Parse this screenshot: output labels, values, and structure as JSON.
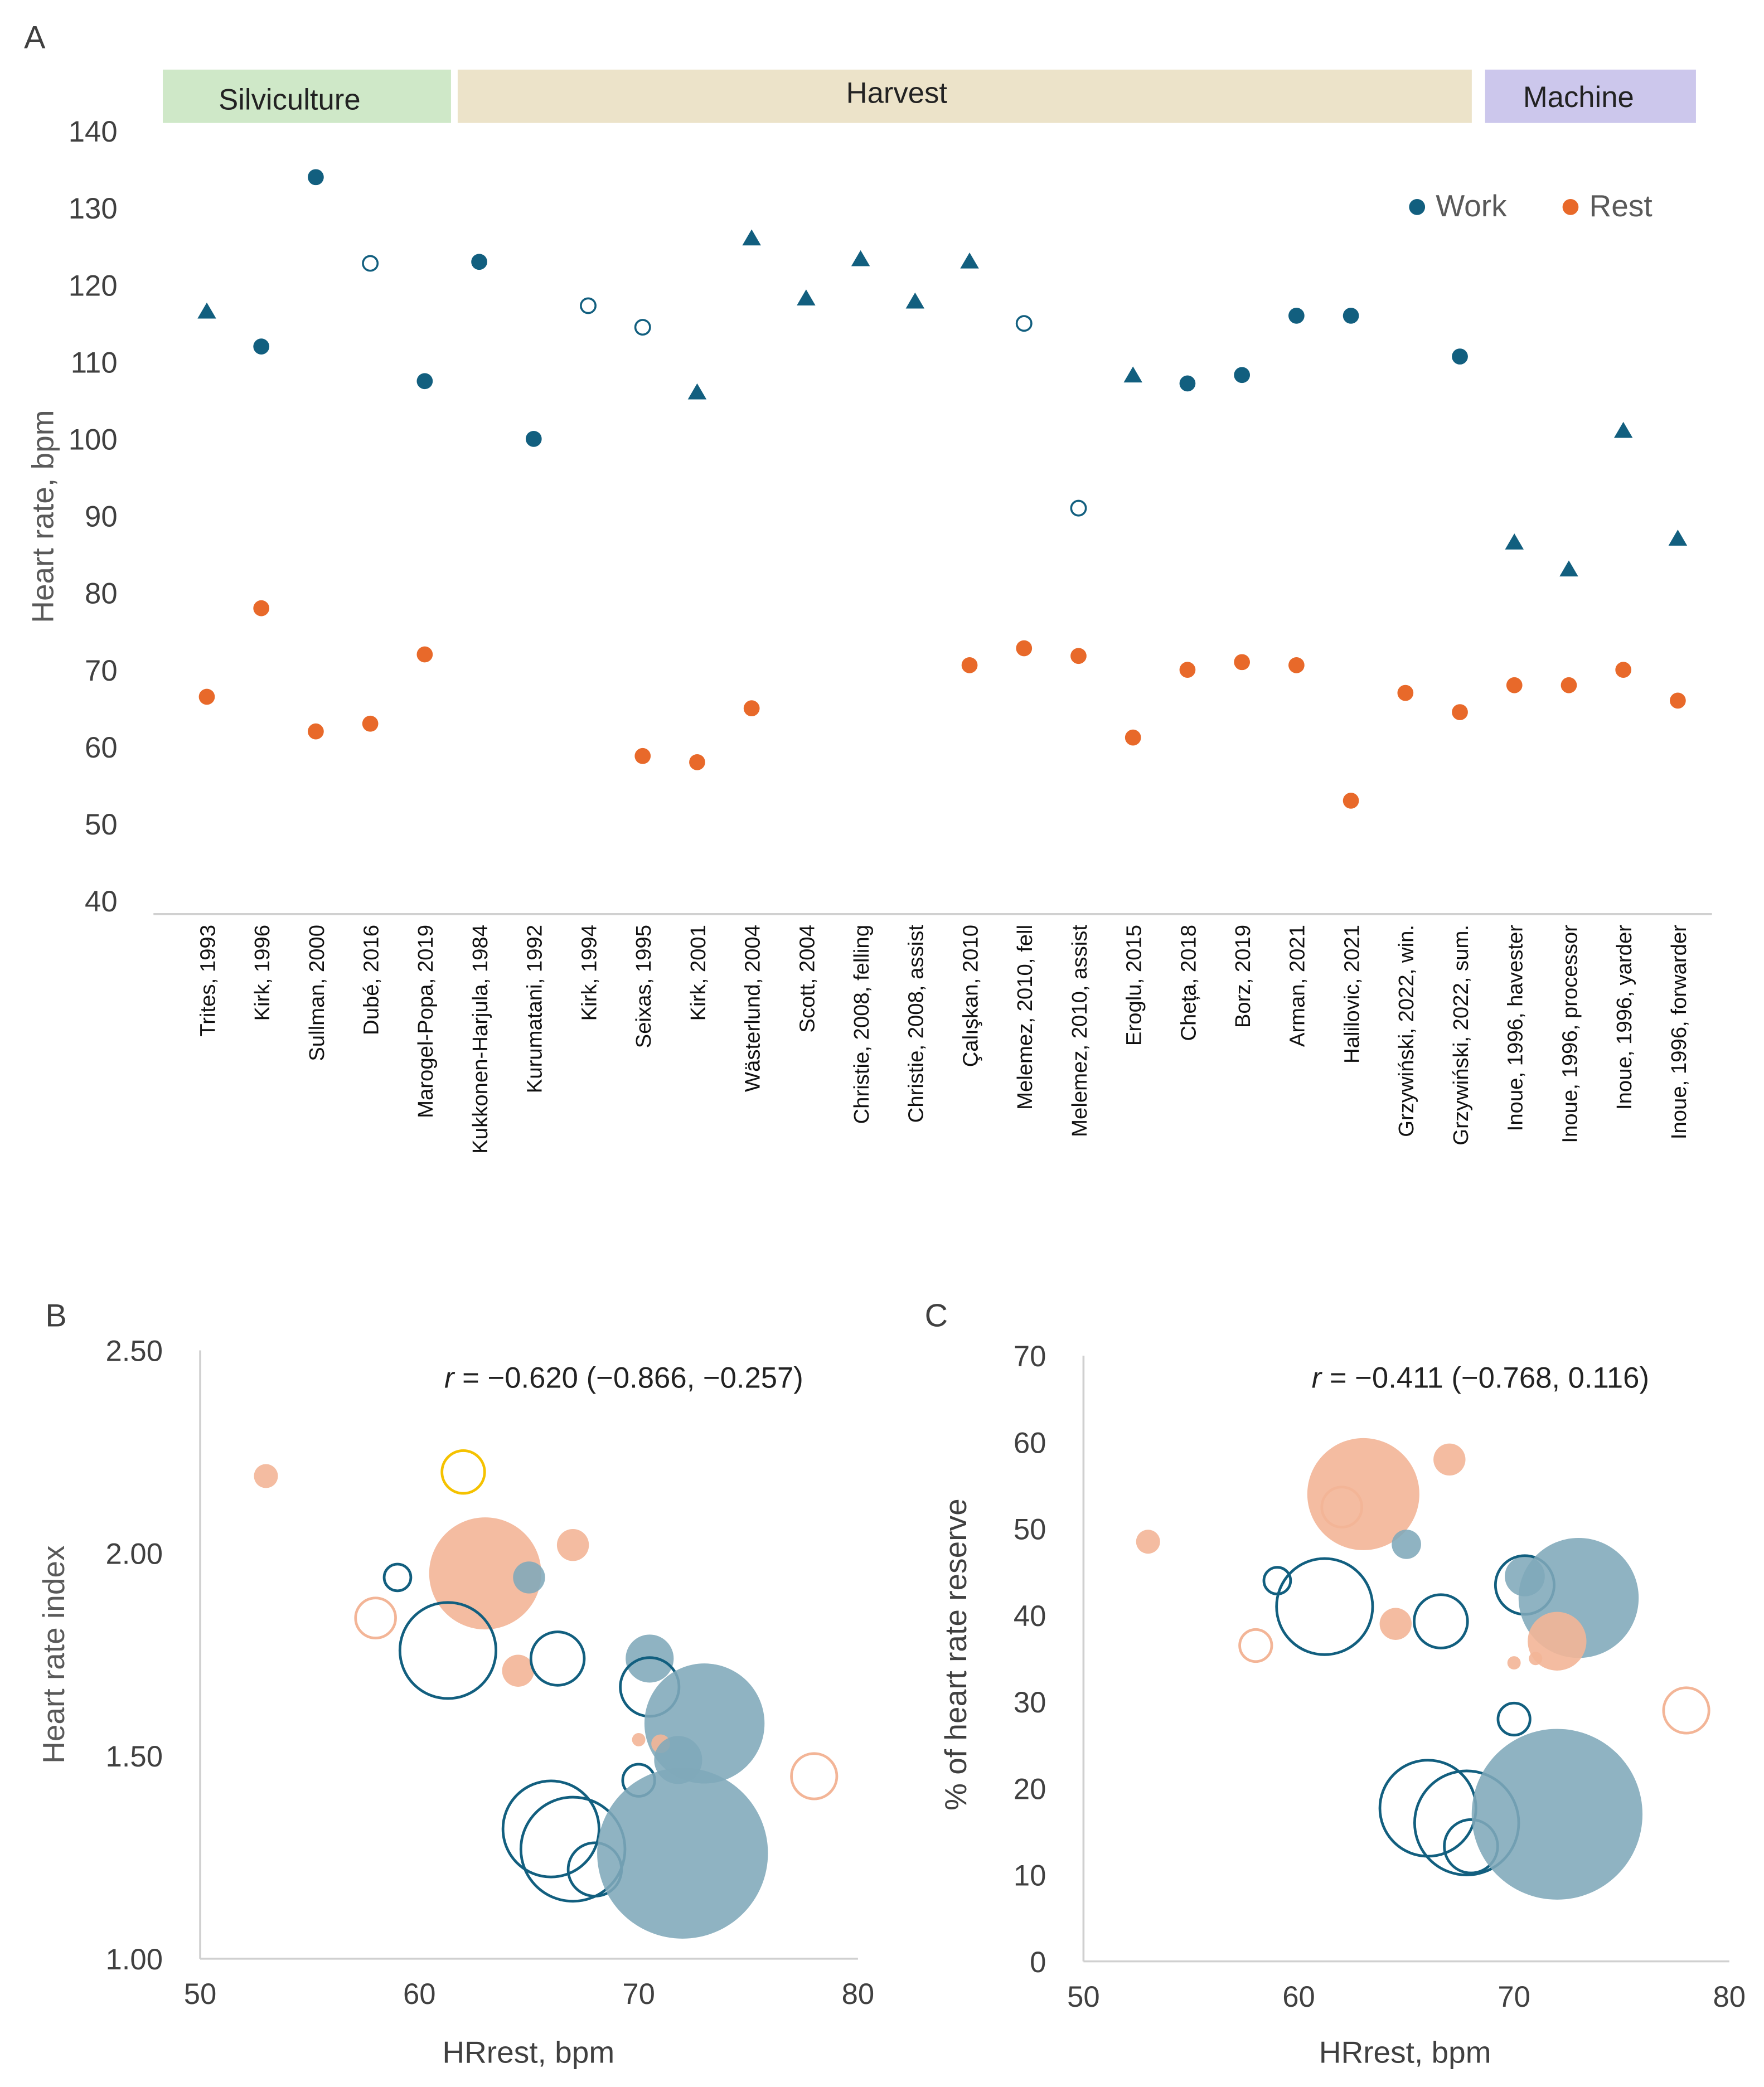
{
  "colors": {
    "work": "#125f7f",
    "work_fill": "#7fa8ba",
    "rest": "#e8692a",
    "rest_fill": "#f3b597",
    "yellow": "#f5c200",
    "axis": "#d0d0d0",
    "text": "#404040",
    "band_silviculture": "#cfe8c8",
    "band_harvest": "#ece3c9",
    "band_machine": "#ccc7ec"
  },
  "chart_data": [
    {
      "panel": "A",
      "type": "scatter",
      "ylabel": "Heart rate, bpm",
      "ylim": [
        40,
        140
      ],
      "yticks": [
        40,
        50,
        60,
        70,
        80,
        90,
        100,
        110,
        120,
        130,
        140
      ],
      "legend": {
        "position": "top-right",
        "work": "Work",
        "rest": "Rest"
      },
      "groups": [
        {
          "label": "Silviculture",
          "from": 0,
          "to": 4
        },
        {
          "label": "Harvest",
          "from": 5,
          "to": 23
        },
        {
          "label": "Machine",
          "from": 24,
          "to": 27
        }
      ],
      "categories": [
        "Trites, 1993",
        "Kirk, 1996",
        "Sullman, 2000",
        "Dubé, 2016",
        "Marogel-Popa, 2019",
        "Kukkonen-Harjula, 1984",
        "Kurumatani, 1992",
        "Kirk, 1994",
        "Seixas, 1995",
        "Kirk, 2001",
        "Wästerlund, 2004",
        "Scott, 2004",
        "Christie, 2008, felling",
        "Christie, 2008, assist",
        "Çalışkan, 2010",
        "Melemez, 2010, fell",
        "Melemez, 2010, assist",
        "Eroglu, 2015",
        "Cheța, 2018",
        "Borz, 2019",
        "Arman, 2021",
        "Halilovic, 2021",
        "Grzywiński, 2022, win.",
        "Grzywiński, 2022, sum.",
        "Inoue, 1996, havester",
        "Inoue, 1996, processor",
        "Inoue, 1996, yarder",
        "Inoue, 1996, forwarder"
      ],
      "work": [
        116.5,
        112,
        134,
        122.8,
        107.5,
        123,
        100,
        117.3,
        114.5,
        106,
        126,
        118.2,
        123.3,
        117.8,
        123,
        115,
        91,
        108.2,
        107.2,
        108.3,
        116,
        116,
        null,
        110.7,
        86.5,
        83,
        101,
        87
      ],
      "work_marker": [
        "triangle",
        "circle",
        "circle",
        "open",
        "circle",
        "circle",
        "circle",
        "open",
        "open",
        "triangle",
        "triangle",
        "triangle",
        "triangle",
        "triangle",
        "triangle",
        "open",
        "open",
        "triangle",
        "circle",
        "circle",
        "circle",
        "circle",
        "none",
        "circle",
        "triangle",
        "triangle",
        "triangle",
        "triangle"
      ],
      "rest": [
        66.5,
        78,
        62,
        63,
        72,
        null,
        null,
        null,
        58.8,
        58,
        65,
        null,
        null,
        null,
        70.6,
        72.8,
        71.8,
        61.2,
        70,
        71,
        70.6,
        53,
        67,
        64.5,
        68,
        68,
        70,
        66
      ]
    },
    {
      "panel": "B",
      "type": "scatter",
      "subtype": "bubble",
      "xlabel": "HRrest, bpm",
      "ylabel": "Heart rate index",
      "xlim": [
        50,
        80
      ],
      "ylim": [
        1.0,
        2.5
      ],
      "xticks": [
        50,
        60,
        70,
        80
      ],
      "yticks": [
        "1.00",
        "1.50",
        "2.00",
        "2.50"
      ],
      "annotation": "r = −0.620 (−0.866, −0.257)",
      "points": [
        {
          "x": 53,
          "y": 2.19,
          "r": 9,
          "style": "rest_fill"
        },
        {
          "x": 62,
          "y": 2.2,
          "r": 16,
          "style": "yellow_open"
        },
        {
          "x": 58,
          "y": 1.84,
          "r": 15,
          "style": "rest_open"
        },
        {
          "x": 59,
          "y": 1.94,
          "r": 10,
          "style": "work_open"
        },
        {
          "x": 63,
          "y": 1.95,
          "r": 42,
          "style": "rest_fill"
        },
        {
          "x": 65,
          "y": 1.94,
          "r": 12,
          "style": "work_fill"
        },
        {
          "x": 67,
          "y": 2.02,
          "r": 12,
          "style": "rest_fill"
        },
        {
          "x": 61.3,
          "y": 1.76,
          "r": 36,
          "style": "work_open"
        },
        {
          "x": 64.5,
          "y": 1.71,
          "r": 12,
          "style": "rest_fill"
        },
        {
          "x": 66.3,
          "y": 1.74,
          "r": 20,
          "style": "work_open"
        },
        {
          "x": 70.5,
          "y": 1.74,
          "r": 18,
          "style": "work_fill"
        },
        {
          "x": 70.5,
          "y": 1.67,
          "r": 22,
          "style": "work_open"
        },
        {
          "x": 73,
          "y": 1.58,
          "r": 45,
          "style": "work_fill"
        },
        {
          "x": 70,
          "y": 1.54,
          "r": 5,
          "style": "rest_fill"
        },
        {
          "x": 71,
          "y": 1.53,
          "r": 7,
          "style": "rest_fill"
        },
        {
          "x": 71.8,
          "y": 1.49,
          "r": 18,
          "style": "work_fill"
        },
        {
          "x": 70,
          "y": 1.44,
          "r": 12,
          "style": "work_open"
        },
        {
          "x": 78,
          "y": 1.45,
          "r": 17,
          "style": "rest_open"
        },
        {
          "x": 66,
          "y": 1.32,
          "r": 36,
          "style": "work_open"
        },
        {
          "x": 67,
          "y": 1.27,
          "r": 39,
          "style": "work_open"
        },
        {
          "x": 68,
          "y": 1.22,
          "r": 20,
          "style": "work_open"
        },
        {
          "x": 72,
          "y": 1.26,
          "r": 64,
          "style": "work_fill"
        }
      ]
    },
    {
      "panel": "C",
      "type": "scatter",
      "subtype": "bubble",
      "xlabel": "HRrest, bpm",
      "ylabel": "% of heart rate reserve",
      "xlim": [
        50,
        80
      ],
      "ylim": [
        0,
        70
      ],
      "xticks": [
        50,
        60,
        70,
        80
      ],
      "yticks": [
        0,
        10,
        20,
        30,
        40,
        50,
        60,
        70
      ],
      "annotation": "r = −0.411 (−0.768, 0.116)",
      "points": [
        {
          "x": 53,
          "y": 48.5,
          "r": 9,
          "style": "rest_fill"
        },
        {
          "x": 63,
          "y": 54,
          "r": 42,
          "style": "rest_fill"
        },
        {
          "x": 62,
          "y": 52.5,
          "r": 15,
          "style": "rest_open"
        },
        {
          "x": 67,
          "y": 58,
          "r": 12,
          "style": "rest_fill"
        },
        {
          "x": 65,
          "y": 48.2,
          "r": 11,
          "style": "work_fill"
        },
        {
          "x": 59,
          "y": 44,
          "r": 10,
          "style": "work_open"
        },
        {
          "x": 61.2,
          "y": 41,
          "r": 36,
          "style": "work_open"
        },
        {
          "x": 64.5,
          "y": 39,
          "r": 12,
          "style": "rest_fill"
        },
        {
          "x": 66.6,
          "y": 39.3,
          "r": 20,
          "style": "work_open"
        },
        {
          "x": 58,
          "y": 36.5,
          "r": 12,
          "style": "rest_open"
        },
        {
          "x": 70.5,
          "y": 44.5,
          "r": 15,
          "style": "work_fill"
        },
        {
          "x": 70.5,
          "y": 43.5,
          "r": 22,
          "style": "work_open"
        },
        {
          "x": 73,
          "y": 42,
          "r": 45,
          "style": "work_fill"
        },
        {
          "x": 72,
          "y": 37,
          "r": 22,
          "style": "rest_fill"
        },
        {
          "x": 70,
          "y": 34.5,
          "r": 5,
          "style": "rest_fill"
        },
        {
          "x": 71,
          "y": 35,
          "r": 5,
          "style": "rest_fill"
        },
        {
          "x": 78,
          "y": 29,
          "r": 17,
          "style": "rest_open"
        },
        {
          "x": 70,
          "y": 28,
          "r": 12,
          "style": "work_open"
        },
        {
          "x": 66,
          "y": 17.7,
          "r": 36,
          "style": "work_open"
        },
        {
          "x": 67.8,
          "y": 16,
          "r": 39,
          "style": "work_open"
        },
        {
          "x": 68,
          "y": 13.3,
          "r": 20,
          "style": "work_open"
        },
        {
          "x": 72,
          "y": 17,
          "r": 64,
          "style": "work_fill"
        }
      ]
    }
  ]
}
